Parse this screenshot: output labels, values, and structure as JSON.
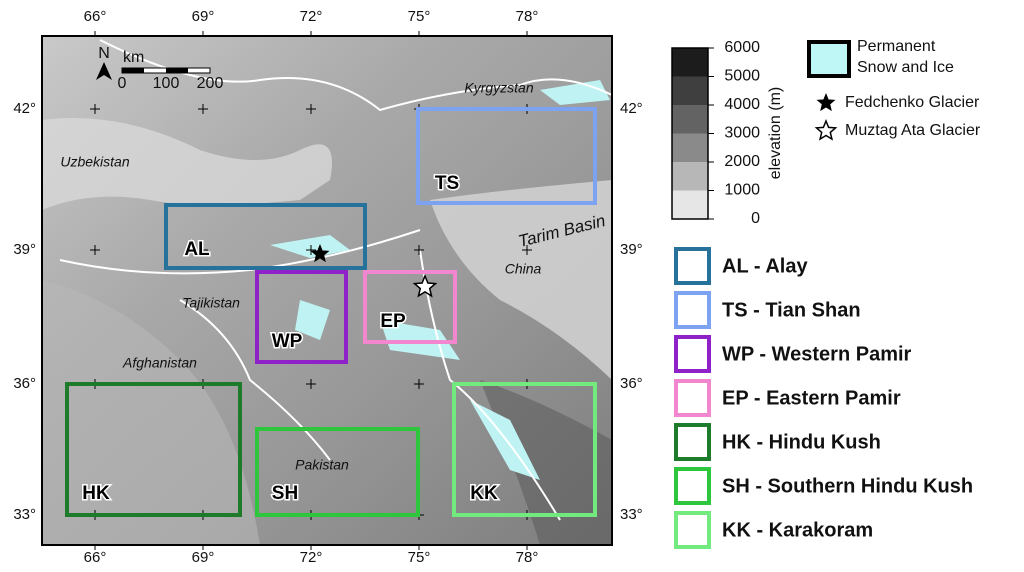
{
  "map": {
    "lon_labels": [
      "66°",
      "69°",
      "72°",
      "75°",
      "78°"
    ],
    "lat_labels": [
      "42°",
      "39°",
      "36°",
      "33°"
    ],
    "countries": [
      "Kyrgyzstan",
      "Uzbekistan",
      "Tajikistan",
      "China",
      "Afghanistan",
      "Pakistan",
      "Tarim Basin"
    ],
    "scale_bar": {
      "north": "N",
      "unit": "km",
      "ticks": [
        "0",
        "100",
        "200"
      ]
    },
    "regions": [
      {
        "code": "AL",
        "label": "AL - Alay",
        "color": "#26729a"
      },
      {
        "code": "TS",
        "label": "TS - Tian Shan",
        "color": "#7ea2f2"
      },
      {
        "code": "WP",
        "label": "WP - Western Pamir",
        "color": "#8f21c8"
      },
      {
        "code": "EP",
        "label": "EP - Eastern Pamir",
        "color": "#f287cf"
      },
      {
        "code": "HK",
        "label": "HK - Hindu Kush",
        "color": "#1e7b2b"
      },
      {
        "code": "SH",
        "label": "SH - Southern Hindu Kush",
        "color": "#2dc63d"
      },
      {
        "code": "KK",
        "label": "KK - Karakoram",
        "color": "#72ea7e"
      }
    ],
    "elevation_legend": {
      "title": "elevation (m)",
      "ticks": [
        "6000",
        "5000",
        "4000",
        "3000",
        "2000",
        "1000",
        "0"
      ]
    },
    "snow_legend": [
      "Permanent",
      "Snow and Ice"
    ],
    "markers": [
      "Fedchenko Glacier",
      "Muztag Ata Glacier"
    ]
  }
}
